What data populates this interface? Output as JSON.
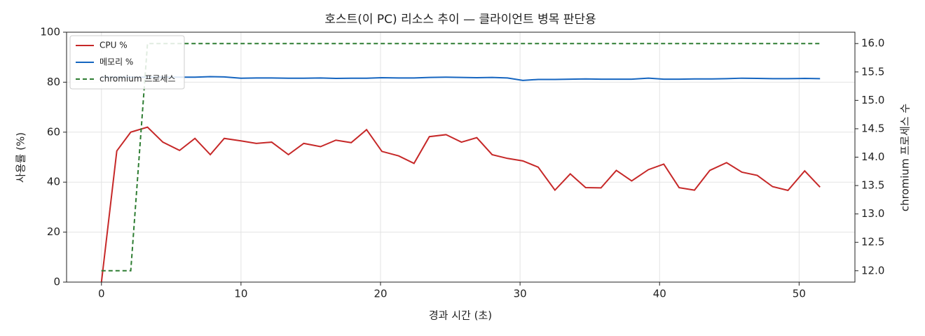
{
  "chart_data": {
    "type": "line",
    "title": "호스트(이 PC) 리소스 추이 — 클라이언트 병목 판단용",
    "xlabel": "경과 시간 (초)",
    "ylabel": "사용률 (%)",
    "y2label": "chromium 프로세스 수",
    "x": [
      0,
      1.1,
      2.1,
      3.3,
      4.4,
      5.6,
      6.7,
      7.8,
      8.8,
      10,
      11.1,
      12.2,
      13.4,
      14.5,
      15.7,
      16.8,
      17.9,
      19,
      20.1,
      21.3,
      22.4,
      23.5,
      24.7,
      25.8,
      26.9,
      28,
      29.1,
      30.2,
      31.3,
      32.5,
      33.6,
      34.7,
      35.8,
      36.9,
      38,
      39.2,
      40.3,
      41.4,
      42.5,
      43.6,
      44.8,
      45.9,
      47,
      48.1,
      49.2,
      50.4,
      51.5
    ],
    "series": [
      {
        "name": "CPU %",
        "color": "#c62828",
        "linestyle": "solid",
        "axis": "y",
        "values": [
          0,
          52.5,
          60,
          62,
          56,
          52.7,
          57.5,
          51,
          57.5,
          56.5,
          55.5,
          56,
          51,
          55.5,
          54.2,
          56.8,
          55.8,
          61,
          52.3,
          50.5,
          47.5,
          58.2,
          59,
          56,
          57.8,
          51,
          49.5,
          48.5,
          46,
          36.8,
          43.3,
          37.8,
          37.7,
          44.7,
          40.5,
          45,
          47.2,
          37.8,
          36.8,
          44.7,
          47.8,
          44,
          42.7,
          38.2,
          36.7,
          44.5,
          38
        ]
      },
      {
        "name": "메모리 %",
        "color": "#1565c0",
        "linestyle": "solid",
        "axis": "y",
        "values": [
          82,
          82,
          82,
          82,
          82,
          82,
          82,
          82.2,
          82.1,
          81.6,
          81.7,
          81.7,
          81.6,
          81.6,
          81.7,
          81.5,
          81.6,
          81.6,
          81.8,
          81.7,
          81.7,
          81.9,
          82,
          81.9,
          81.8,
          81.9,
          81.7,
          80.7,
          81.1,
          81.1,
          81.2,
          81.3,
          81.2,
          81.2,
          81.2,
          81.6,
          81.2,
          81.2,
          81.3,
          81.3,
          81.4,
          81.6,
          81.5,
          81.4,
          81.4,
          81.5,
          81.4
        ]
      },
      {
        "name": "chromium 프로세스",
        "color": "#2e7d32",
        "linestyle": "dashed",
        "axis": "y2",
        "values": [
          12,
          12,
          12,
          16,
          16,
          16,
          16,
          16,
          16,
          16,
          16,
          16,
          16,
          16,
          16,
          16,
          16,
          16,
          16,
          16,
          16,
          16,
          16,
          16,
          16,
          16,
          16,
          16,
          16,
          16,
          16,
          16,
          16,
          16,
          16,
          16,
          16,
          16,
          16,
          16,
          16,
          16,
          16,
          16,
          16,
          16,
          16
        ]
      }
    ],
    "xlim": [
      -2.5,
      54
    ],
    "xticks": [
      0,
      10,
      20,
      30,
      40,
      50
    ],
    "ylim": [
      0,
      100
    ],
    "yticks": [
      0,
      20,
      40,
      60,
      80,
      100
    ],
    "y2lim": [
      11.8,
      16.2
    ],
    "y2ticks": [
      {
        "value": 12,
        "label": "12.0"
      },
      12.5,
      {
        "value": 13,
        "label": "13.0"
      },
      13.5,
      {
        "value": 14,
        "label": "14.0"
      },
      14.5,
      {
        "value": 15,
        "label": "15.0"
      },
      15.5,
      {
        "value": 16,
        "label": "16.0"
      }
    ],
    "grid": true,
    "legend": "upper-left"
  }
}
